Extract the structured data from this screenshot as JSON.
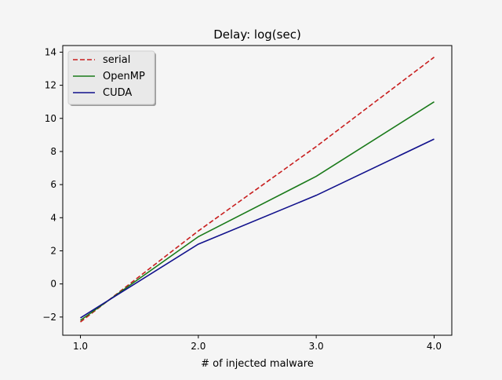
{
  "chart_data": {
    "type": "line",
    "title": "Delay: log(sec)",
    "xlabel": "# of injected malware",
    "ylabel": "",
    "x": [
      1.0,
      2.0,
      3.0,
      4.0
    ],
    "x_tick_labels": [
      "1.0",
      "2.0",
      "3.0",
      "4.0"
    ],
    "xlim": [
      0.85,
      4.15
    ],
    "ylim": [
      -3.1,
      14.4
    ],
    "y_ticks": [
      -2,
      0,
      2,
      4,
      6,
      8,
      10,
      12,
      14
    ],
    "y_tick_labels": [
      "−2",
      "0",
      "2",
      "4",
      "6",
      "8",
      "10",
      "12",
      "14"
    ],
    "grid": false,
    "legend_position": "top-left",
    "series": [
      {
        "name": "serial",
        "values": [
          -2.3,
          3.2,
          8.3,
          13.7
        ],
        "color": "#c81e1e",
        "linestyle": "dashed"
      },
      {
        "name": "OpenMP",
        "values": [
          -2.2,
          2.85,
          6.5,
          11.0
        ],
        "color": "#1a7a1a",
        "linestyle": "solid"
      },
      {
        "name": "CUDA",
        "values": [
          -2.05,
          2.4,
          5.35,
          8.75
        ],
        "color": "#11118c",
        "linestyle": "solid"
      }
    ]
  }
}
